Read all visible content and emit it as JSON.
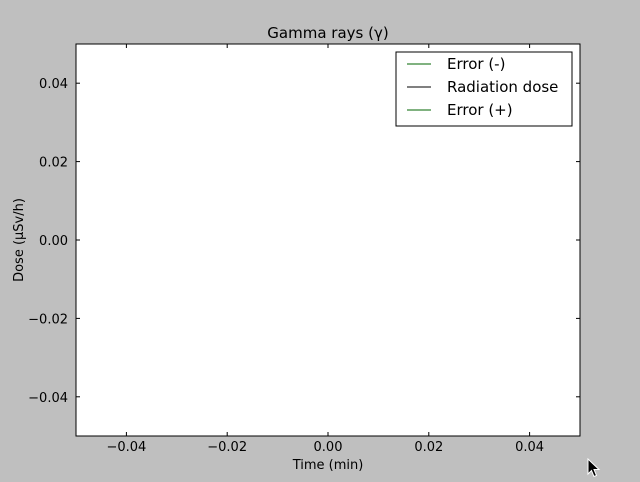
{
  "window": {
    "background": "#bfbfbf"
  },
  "chart_data": {
    "type": "line",
    "title": "Gamma rays (γ)",
    "xlabel": "Time (min)",
    "ylabel": "Dose (µSv/h)",
    "xlim": [
      -0.05,
      0.05
    ],
    "ylim": [
      -0.05,
      0.05
    ],
    "xticks": [
      -0.04,
      -0.02,
      0.0,
      0.02,
      0.04
    ],
    "yticks": [
      -0.04,
      -0.02,
      0.0,
      0.02,
      0.04
    ],
    "xtick_labels": [
      "−0.04",
      "−0.02",
      "0.00",
      "0.02",
      "0.04"
    ],
    "ytick_labels": [
      "−0.04",
      "−0.02",
      "0.00",
      "0.02",
      "0.04"
    ],
    "grid": false,
    "legend_position": "top-right",
    "series": [
      {
        "name": "Error (-)",
        "color": "#006400",
        "x": [],
        "y": []
      },
      {
        "name": "Radiation dose",
        "color": "#000000",
        "x": [],
        "y": []
      },
      {
        "name": "Error (+)",
        "color": "#006400",
        "x": [],
        "y": []
      }
    ]
  }
}
